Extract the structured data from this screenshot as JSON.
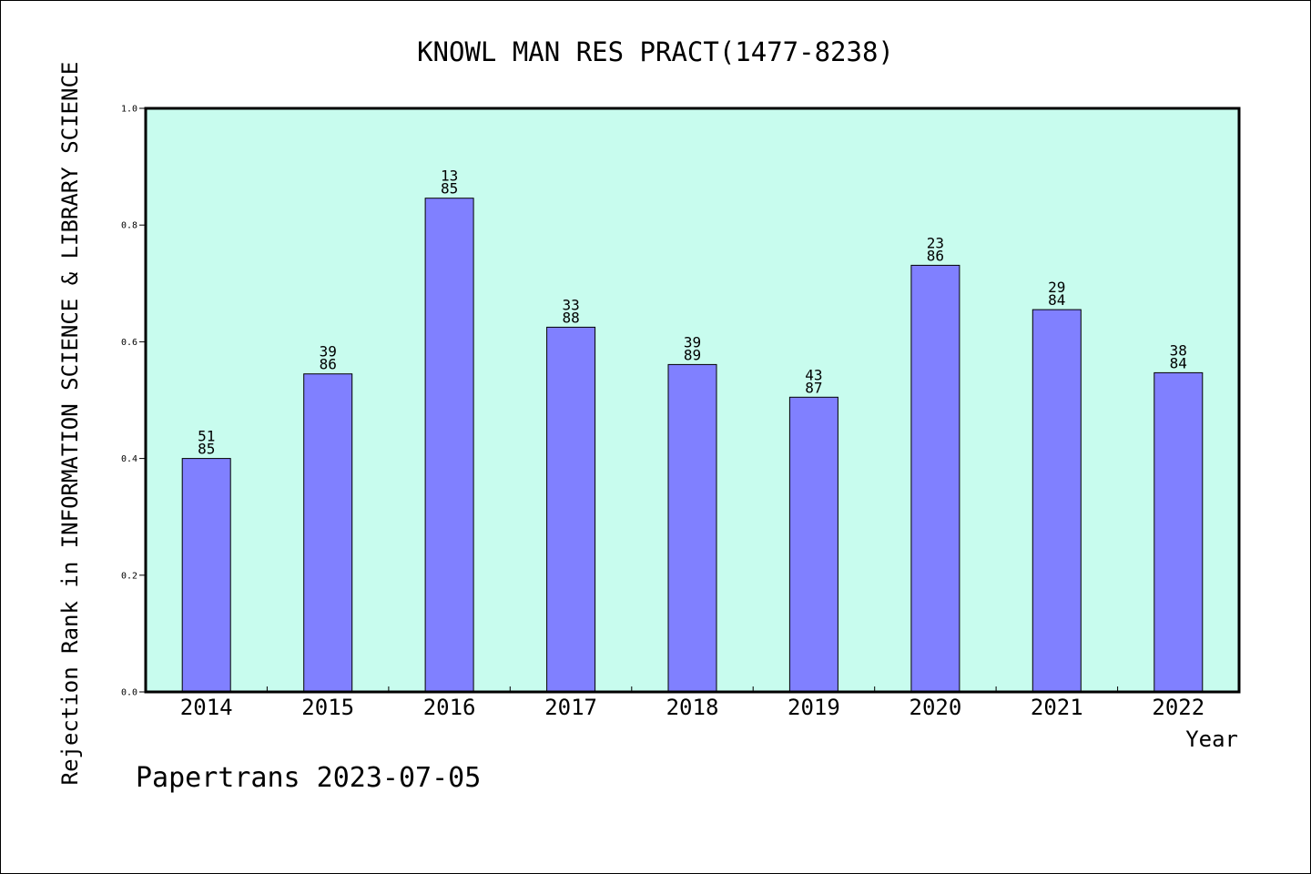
{
  "chart_data": {
    "type": "bar",
    "title": "KNOWL MAN RES PRACT(1477-8238)",
    "xlabel": "Year",
    "ylabel": "Rejection Rank in INFORMATION SCIENCE & LIBRARY SCIENCE",
    "categories": [
      "2014",
      "2015",
      "2016",
      "2017",
      "2018",
      "2019",
      "2020",
      "2021",
      "2022"
    ],
    "values": [
      0.4,
      0.545,
      0.846,
      0.625,
      0.561,
      0.505,
      0.731,
      0.655,
      0.547
    ],
    "bar_labels": [
      [
        "51",
        "85"
      ],
      [
        "39",
        "86"
      ],
      [
        "13",
        "85"
      ],
      [
        "33",
        "88"
      ],
      [
        "39",
        "89"
      ],
      [
        "43",
        "87"
      ],
      [
        "23",
        "86"
      ],
      [
        "29",
        "84"
      ],
      [
        "38",
        "84"
      ]
    ],
    "ylim": [
      0.0,
      1.0
    ],
    "yticks": [
      "0.0",
      "0.2",
      "0.4",
      "0.6",
      "0.8",
      "1.0"
    ],
    "grid": false,
    "colors": {
      "plot_background": "#c8fcee",
      "bar_fill": "#8080ff",
      "bar_stroke": "#000000"
    }
  },
  "footer": {
    "credit": "Papertrans 2023-07-05"
  }
}
